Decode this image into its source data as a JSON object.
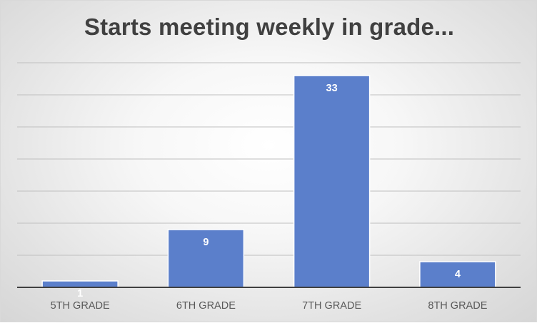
{
  "chart_data": {
    "type": "bar",
    "title": "Starts meeting weekly in grade...",
    "categories": [
      "5TH GRADE",
      "6TH GRADE",
      "7TH GRADE",
      "8TH GRADE"
    ],
    "values": [
      1,
      9,
      33,
      4
    ],
    "data_labels": [
      "1",
      "9",
      "33",
      "4"
    ],
    "ylim": [
      0,
      35
    ],
    "gridline_step": 5,
    "grid": true,
    "y_axis_labels_shown": false,
    "legend": "none",
    "bar_color": "#5b7fcb",
    "bar_edge_color": "#ffffff",
    "gridline_color": "#bfbfbf",
    "axis_color": "#404040"
  }
}
